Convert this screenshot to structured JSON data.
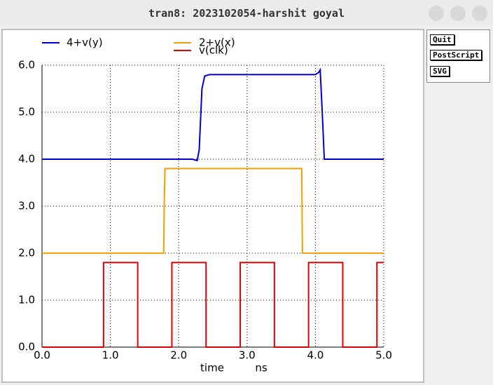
{
  "window_title": "tran8: 2023102054-harshit goyal",
  "buttons": [
    "Quit",
    "PostScript",
    "SVG"
  ],
  "chart_data": {
    "type": "line",
    "xlabel": "time",
    "xunit": "ns",
    "xlim": [
      0,
      5
    ],
    "ylim": [
      0,
      6
    ],
    "xticks": [
      {
        "value": 0,
        "label": "0.0"
      },
      {
        "value": 1,
        "label": "1.0"
      },
      {
        "value": 2,
        "label": "2.0"
      },
      {
        "value": 3,
        "label": "3.0"
      },
      {
        "value": 4,
        "label": "4.0"
      },
      {
        "value": 5,
        "label": "5.0"
      }
    ],
    "yticks": [
      {
        "value": 0,
        "label": "0.0"
      },
      {
        "value": 1,
        "label": "1.0"
      },
      {
        "value": 2,
        "label": "2.0"
      },
      {
        "value": 3,
        "label": "3.0"
      },
      {
        "value": 4,
        "label": "4.0"
      },
      {
        "value": 5,
        "label": "5.0"
      },
      {
        "value": 6,
        "label": "6.0"
      }
    ],
    "grid": true,
    "series": [
      {
        "name": "4+v(y)",
        "color": "#0000cc",
        "x": [
          0,
          2.2,
          2.27,
          2.3,
          2.34,
          2.38,
          2.45,
          4.0,
          4.05,
          4.07,
          4.1,
          4.13,
          5.0
        ],
        "values": [
          4,
          4,
          3.97,
          4.2,
          5.5,
          5.77,
          5.8,
          5.8,
          5.85,
          5.9,
          5.0,
          4.0,
          4.0
        ]
      },
      {
        "name": "2+v(x)",
        "color": "#f0a000",
        "x": [
          0,
          1.78,
          1.79,
          1.8,
          3.8,
          3.81,
          5.0
        ],
        "values": [
          2,
          2,
          3.2,
          3.8,
          3.8,
          2,
          2
        ]
      },
      {
        "name": "v(clk)",
        "color": "#e00000",
        "x": [
          0,
          0.9,
          0.9,
          1.4,
          1.4,
          1.9,
          1.9,
          2.4,
          2.4,
          2.9,
          2.9,
          3.4,
          3.4,
          3.9,
          3.9,
          4.4,
          4.4,
          4.9,
          4.9,
          5.0
        ],
        "values": [
          0,
          0,
          1.8,
          1.8,
          0,
          0,
          1.8,
          1.8,
          0,
          0,
          1.8,
          1.8,
          0,
          0,
          1.8,
          1.8,
          0,
          0,
          1.8,
          1.8
        ]
      }
    ]
  }
}
